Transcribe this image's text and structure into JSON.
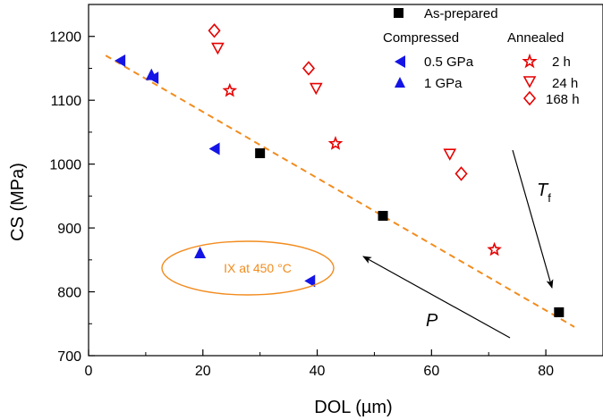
{
  "chart_data": {
    "type": "scatter",
    "xlabel": "DOL (µm)",
    "ylabel": "CS (MPa)",
    "xlim": [
      0,
      90
    ],
    "ylim": [
      700,
      1250
    ],
    "xticks": [
      0,
      20,
      40,
      60,
      80
    ],
    "yticks": [
      700,
      800,
      900,
      1000,
      1100,
      1200
    ],
    "grid": false,
    "series": [
      {
        "name": "As-prepared",
        "marker": "square",
        "color": "#000000",
        "points": [
          [
            30,
            1017
          ],
          [
            51.5,
            919
          ],
          [
            82.3,
            768
          ]
        ]
      },
      {
        "name": "0.5 GPa",
        "group": "Compressed",
        "marker": "triangle-left",
        "color": "#1414e6",
        "points": [
          [
            5.5,
            1162
          ],
          [
            11.3,
            1135
          ],
          [
            22,
            1024
          ],
          [
            38.7,
            817
          ]
        ]
      },
      {
        "name": "1 GPa",
        "group": "Compressed",
        "marker": "triangle-up",
        "color": "#1414e6",
        "points": [
          [
            11,
            1140
          ],
          [
            19.5,
            861
          ]
        ]
      },
      {
        "name": "2 h",
        "group": "Annealed",
        "marker": "star",
        "color": "#e60000",
        "points": [
          [
            24.7,
            1115
          ],
          [
            43.2,
            1032
          ],
          [
            71,
            866
          ]
        ]
      },
      {
        "name": "24 h",
        "group": "Annealed",
        "marker": "triangle-down",
        "color": "#e60000",
        "points": [
          [
            22.6,
            1182
          ],
          [
            39.8,
            1119
          ],
          [
            63.2,
            1016
          ]
        ]
      },
      {
        "name": "168 h",
        "group": "Annealed",
        "marker": "diamond",
        "color": "#e60000",
        "points": [
          [
            22,
            1209
          ],
          [
            38.5,
            1150
          ],
          [
            65.2,
            985
          ]
        ]
      }
    ],
    "fit_line": {
      "color": "#f28c1e",
      "points": [
        [
          3,
          1170
        ],
        [
          85,
          745
        ]
      ]
    },
    "legend": {
      "as_prepared": "As-prepared",
      "compressed_header": "Compressed",
      "annealed_header": "Annealed"
    },
    "annotations": {
      "ix_label": "IX at 450 °C",
      "ix_color": "#f28c1e",
      "tf_label_main": "T",
      "tf_label_sub": "f",
      "p_label": "P"
    }
  }
}
